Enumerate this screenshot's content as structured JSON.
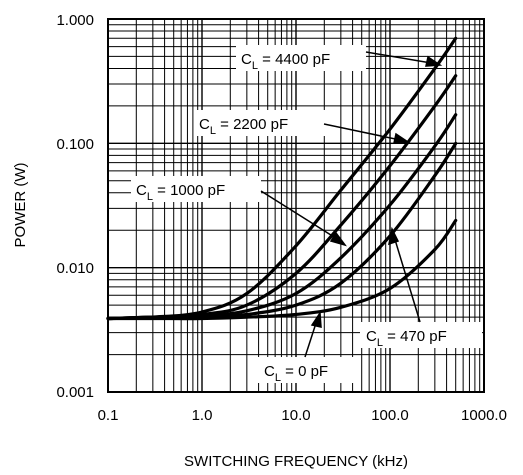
{
  "chart_data": {
    "type": "line",
    "title": "",
    "xlabel": "SWITCHING FREQUENCY (kHz)",
    "ylabel": "POWER (W)",
    "xscale": "log",
    "yscale": "log",
    "xlim": [
      0.1,
      1000
    ],
    "ylim": [
      0.001,
      1
    ],
    "grid": true,
    "x_ticks": [
      "0.1",
      "1.0",
      "10.0",
      "100.0",
      "1000.0"
    ],
    "y_ticks": [
      "0.001",
      "0.010",
      "0.100",
      "1.000"
    ],
    "series": [
      {
        "name": "C_L = 4400 pF",
        "annotation": {
          "prefix": "C",
          "sub": "L",
          "text": " = 4400 pF"
        },
        "points": [
          [
            0.1,
            0.0039
          ],
          [
            0.3,
            0.004
          ],
          [
            1,
            0.0044
          ],
          [
            3,
            0.0062
          ],
          [
            10,
            0.015
          ],
          [
            30,
            0.042
          ],
          [
            100,
            0.13
          ],
          [
            300,
            0.4
          ],
          [
            500,
            0.7
          ]
        ]
      },
      {
        "name": "C_L = 2200 pF",
        "annotation": {
          "prefix": "C",
          "sub": "L",
          "text": " = 2200 pF"
        },
        "points": [
          [
            0.1,
            0.0039
          ],
          [
            0.3,
            0.004
          ],
          [
            1,
            0.0042
          ],
          [
            3,
            0.005
          ],
          [
            10,
            0.009
          ],
          [
            30,
            0.022
          ],
          [
            100,
            0.066
          ],
          [
            300,
            0.2
          ],
          [
            500,
            0.35
          ]
        ]
      },
      {
        "name": "C_L = 1000 pF",
        "annotation": {
          "prefix": "C",
          "sub": "L",
          "text": " = 1000 pF"
        },
        "points": [
          [
            0.1,
            0.0039
          ],
          [
            0.3,
            0.004
          ],
          [
            1,
            0.0041
          ],
          [
            3,
            0.0045
          ],
          [
            10,
            0.0062
          ],
          [
            30,
            0.012
          ],
          [
            100,
            0.032
          ],
          [
            300,
            0.095
          ],
          [
            500,
            0.17
          ]
        ]
      },
      {
        "name": "C_L = 470 pF",
        "annotation": {
          "prefix": "C",
          "sub": "L",
          "text": " = 470 pF"
        },
        "points": [
          [
            0.1,
            0.0039
          ],
          [
            0.3,
            0.004
          ],
          [
            1,
            0.004
          ],
          [
            3,
            0.0042
          ],
          [
            10,
            0.005
          ],
          [
            30,
            0.0075
          ],
          [
            100,
            0.018
          ],
          [
            300,
            0.055
          ],
          [
            500,
            0.1
          ]
        ]
      },
      {
        "name": "C_L = 0 pF",
        "annotation": {
          "prefix": "C",
          "sub": "L",
          "text": " = 0 pF"
        },
        "points": [
          [
            0.1,
            0.0039
          ],
          [
            0.3,
            0.0039
          ],
          [
            1,
            0.0039
          ],
          [
            3,
            0.004
          ],
          [
            10,
            0.0042
          ],
          [
            30,
            0.0048
          ],
          [
            100,
            0.0068
          ],
          [
            300,
            0.014
          ],
          [
            500,
            0.024
          ]
        ]
      }
    ]
  }
}
